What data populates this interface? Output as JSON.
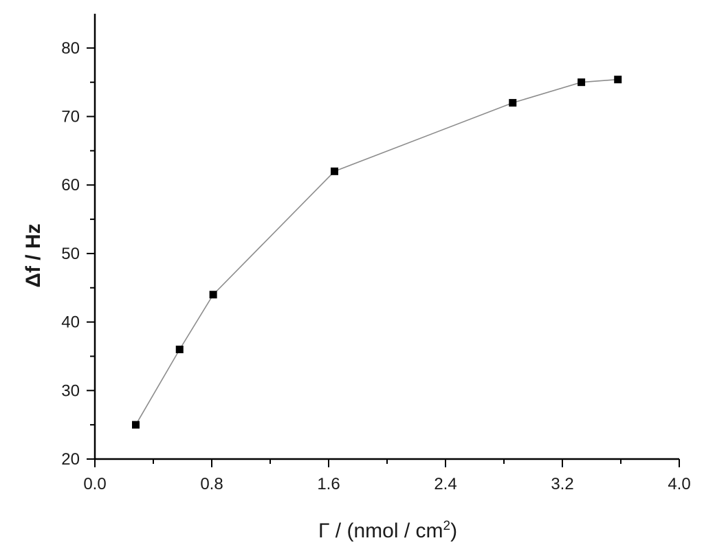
{
  "chart_data": {
    "type": "line",
    "title": "",
    "xlabel": "Γ / (nmol / cm",
    "xlabel_sup": "2",
    "xlabel_close": ")",
    "ylabel": "Δf / Hz",
    "xlim": [
      0.0,
      4.0
    ],
    "ylim": [
      20,
      85
    ],
    "x_ticks": [
      0.0,
      0.8,
      1.6,
      2.4,
      3.2,
      4.0
    ],
    "x_tick_labels": [
      "0.0",
      "0.8",
      "1.6",
      "2.4",
      "3.2",
      "4.0"
    ],
    "y_ticks": [
      20,
      30,
      40,
      50,
      60,
      70,
      80
    ],
    "y_tick_labels": [
      "20",
      "30",
      "40",
      "50",
      "60",
      "70",
      "80"
    ],
    "grid": false,
    "series": [
      {
        "marker": "square",
        "color": "#000000",
        "line_color": "#8c8c8c",
        "x": [
          0.28,
          0.58,
          0.81,
          1.64,
          2.86,
          3.33,
          3.58
        ],
        "y": [
          25,
          36,
          44,
          62,
          72,
          75,
          75.4
        ]
      }
    ]
  }
}
